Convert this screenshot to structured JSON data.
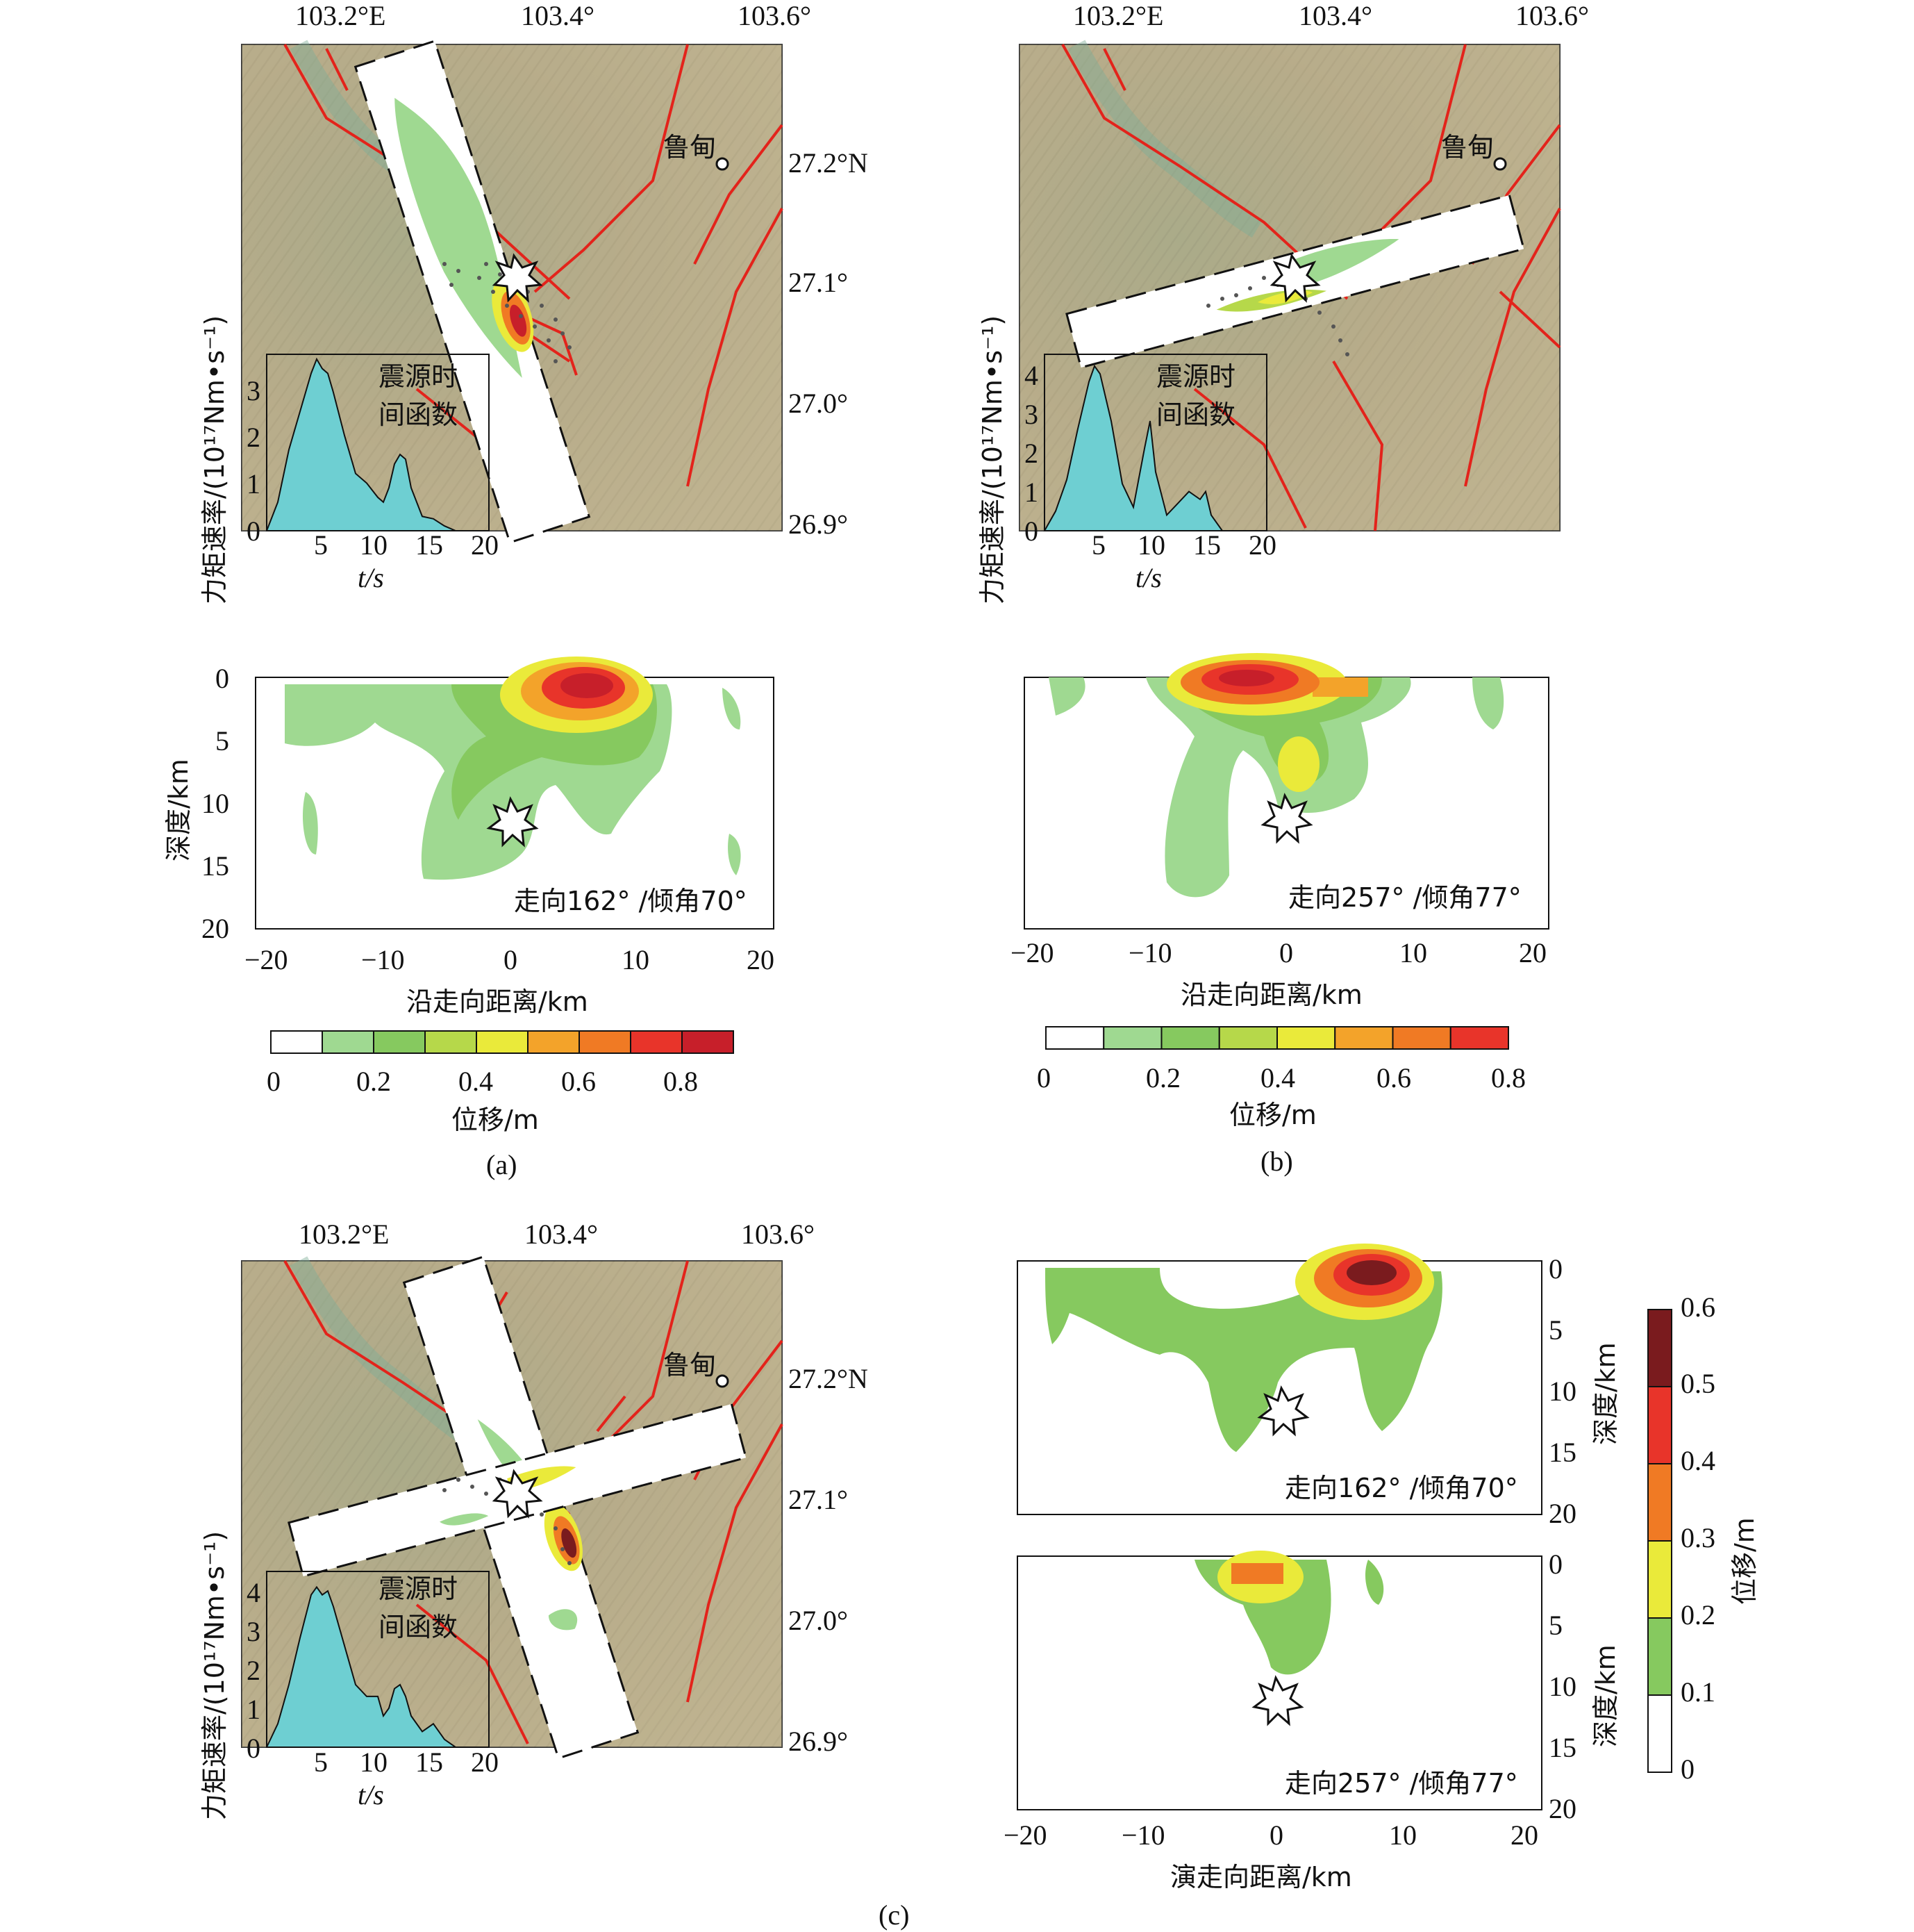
{
  "colors": {
    "terrain": "#b9ad8a",
    "terrain_dark": "#8f9b80",
    "fault": "#e3231b",
    "stf_fill": "#6ecfd2",
    "green1": "#9fd991",
    "green2": "#86c95f",
    "yellowgreen": "#b6d84a",
    "yellow": "#eaea3a",
    "orange1": "#f3a32a",
    "orange2": "#f07a24",
    "red1": "#e8342a",
    "red2": "#c71f2a",
    "darkred": "#7a1b1e"
  },
  "panel_a": {
    "caption": "(a)",
    "map": {
      "lon_labels": [
        "103.2°E",
        "103.4°",
        "103.6°"
      ],
      "lat_labels": [
        "27.2°N",
        "27.1°",
        "27.0°",
        "26.9°"
      ],
      "town": "鲁甸",
      "stf_label_l1": "震源时",
      "stf_label_l2": "间函数",
      "stf_ylabel": "力矩速率/(10¹⁷Nm•s⁻¹)",
      "stf_xlabel": "t/s",
      "stf_yticks": [
        "0",
        "1",
        "2",
        "3"
      ],
      "stf_xticks": [
        "5",
        "10",
        "15",
        "20"
      ]
    },
    "slip": {
      "annotation": "走向162° /倾角70°",
      "ylabel": "深度/km",
      "xlabel": "沿走向距离/km",
      "xticks": [
        "−20",
        "−10",
        "0",
        "10",
        "20"
      ],
      "yticks": [
        "0",
        "5",
        "10",
        "15",
        "20"
      ]
    },
    "colorbar": {
      "ticks": [
        "0",
        "0.2",
        "0.4",
        "0.6",
        "0.8"
      ],
      "label": "位移/m"
    }
  },
  "panel_b": {
    "caption": "(b)",
    "map": {
      "lon_labels": [
        "103.2°E",
        "103.4°",
        "103.6°"
      ],
      "town": "鲁甸",
      "stf_label_l1": "震源时",
      "stf_label_l2": "间函数",
      "stf_ylabel": "力矩速率/(10¹⁷Nm•s⁻¹)",
      "stf_xlabel": "t/s",
      "stf_yticks": [
        "0",
        "1",
        "2",
        "3",
        "4"
      ],
      "stf_xticks": [
        "5",
        "10",
        "15",
        "20"
      ]
    },
    "slip": {
      "annotation": "走向257° /倾角77°",
      "xlabel": "沿走向距离/km",
      "xticks": [
        "−20",
        "−10",
        "0",
        "10",
        "20"
      ]
    },
    "colorbar": {
      "ticks": [
        "0",
        "0.2",
        "0.4",
        "0.6",
        "0.8"
      ],
      "label": "位移/m"
    }
  },
  "panel_c": {
    "caption": "(c)",
    "map": {
      "lon_labels": [
        "103.2°E",
        "103.4°",
        "103.6°"
      ],
      "lat_labels": [
        "27.2°N",
        "27.1°",
        "27.0°",
        "26.9°"
      ],
      "town": "鲁甸",
      "stf_label_l1": "震源时",
      "stf_label_l2": "间函数",
      "stf_ylabel": "力矩速率/(10¹⁷Nm•s⁻¹)",
      "stf_xlabel": "t/s",
      "stf_yticks": [
        "0",
        "1",
        "2",
        "3",
        "4"
      ],
      "stf_xticks": [
        "5",
        "10",
        "15",
        "20"
      ]
    },
    "slip_top": {
      "annotation": "走向162° /倾角70°",
      "ylabel": "深度/km",
      "yticks": [
        "0",
        "5",
        "10",
        "15",
        "20"
      ]
    },
    "slip_bottom": {
      "annotation": "走向257° /倾角77°",
      "ylabel": "深度/km",
      "yticks": [
        "0",
        "5",
        "10",
        "15",
        "20"
      ],
      "xlabel": "演走向距离/km",
      "xticks": [
        "−20",
        "−10",
        "0",
        "10",
        "20"
      ]
    },
    "colorbar": {
      "ticks": [
        "0.6",
        "0.5",
        "0.4",
        "0.3",
        "0.2",
        "0.1",
        "0"
      ],
      "label": "位移/m"
    }
  },
  "chart_data": [
    {
      "type": "area",
      "title": "震源时间函数 (a)",
      "xlabel": "t/s",
      "ylabel": "力矩速率/(10¹⁷Nm•s⁻¹)",
      "x": [
        0,
        1,
        2,
        3,
        4,
        4.5,
        5,
        5.5,
        6,
        7,
        8,
        9,
        10,
        10.5,
        11,
        11.5,
        12,
        12.5,
        13,
        14,
        15,
        16,
        17,
        18
      ],
      "y": [
        0,
        0.6,
        1.7,
        2.5,
        3.3,
        3.6,
        3.4,
        3.3,
        2.9,
        2.0,
        1.2,
        1.0,
        0.7,
        0.6,
        0.9,
        1.4,
        1.6,
        1.5,
        0.9,
        0.3,
        0.25,
        0.1,
        0,
        0
      ],
      "xlim": [
        0,
        20
      ],
      "ylim": [
        0,
        3.7
      ]
    },
    {
      "type": "area",
      "title": "震源时间函数 (b)",
      "xlabel": "t/s",
      "ylabel": "力矩速率/(10¹⁷Nm•s⁻¹)",
      "x": [
        0,
        1,
        2,
        3,
        4,
        4.5,
        5,
        6,
        7,
        8,
        9,
        9.5,
        10,
        11,
        12,
        13,
        14,
        14.5,
        15,
        16
      ],
      "y": [
        0,
        0.5,
        1.3,
        2.6,
        3.8,
        4.2,
        4.0,
        2.8,
        1.2,
        0.6,
        2.1,
        2.8,
        1.5,
        0.4,
        0.7,
        1.0,
        0.8,
        1.0,
        0.4,
        0
      ],
      "xlim": [
        0,
        20
      ],
      "ylim": [
        0,
        4.5
      ]
    },
    {
      "type": "area",
      "title": "震源时间函数 (c)",
      "xlabel": "t/s",
      "ylabel": "力矩速率/(10¹⁷Nm•s⁻¹)",
      "x": [
        0,
        1,
        2,
        3,
        4,
        4.5,
        5,
        5.5,
        6,
        7,
        8,
        9,
        10,
        10.5,
        11,
        11.5,
        12,
        12.5,
        13,
        14,
        15,
        16,
        17,
        18
      ],
      "y": [
        0,
        0.6,
        1.6,
        2.8,
        3.9,
        4.1,
        3.9,
        4.0,
        3.6,
        2.6,
        1.6,
        1.3,
        1.3,
        0.8,
        1.0,
        1.5,
        1.6,
        1.3,
        0.8,
        0.4,
        0.6,
        0.2,
        0,
        0
      ],
      "xlim": [
        0,
        20
      ],
      "ylim": [
        0,
        4.5
      ]
    }
  ]
}
